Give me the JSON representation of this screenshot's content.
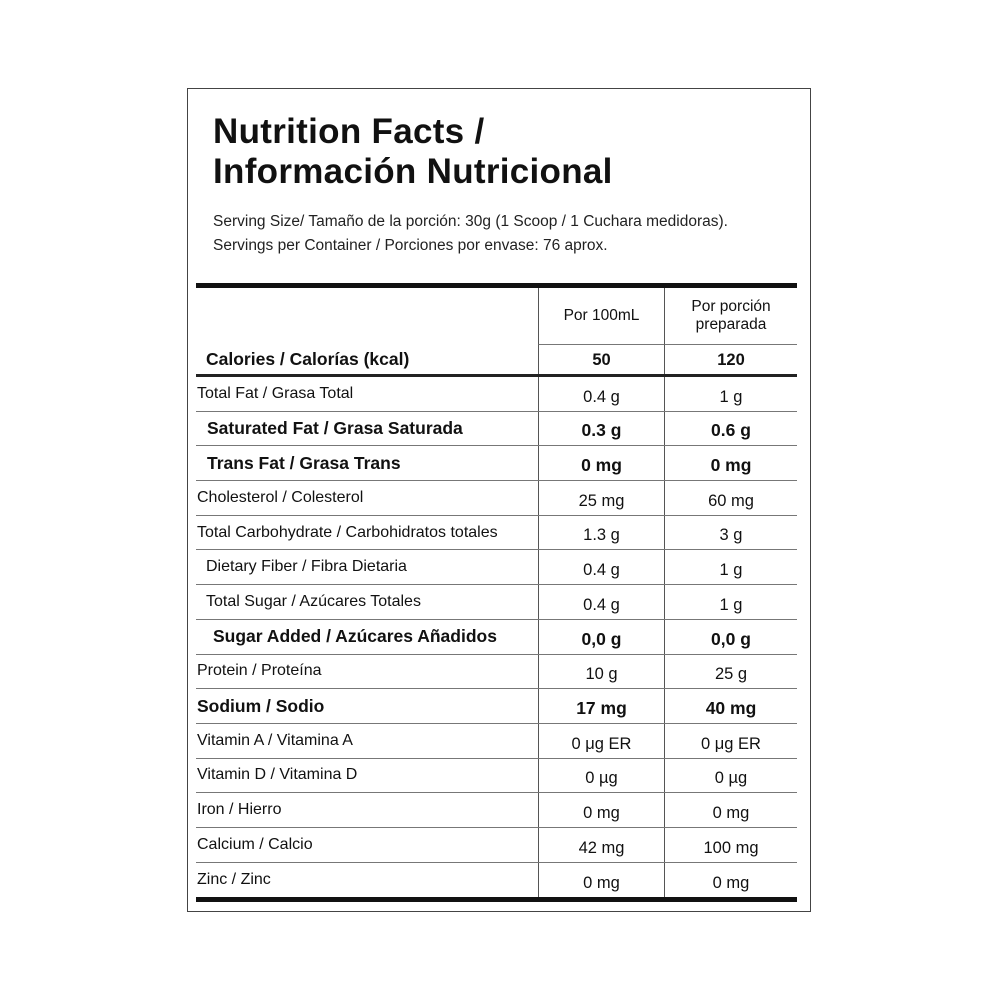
{
  "title_line1": "Nutrition Facts /",
  "title_line2": "Información Nutricional",
  "serving_size": "Serving Size/ Tamaño de la porción: 30g  (1 Scoop / 1 Cuchara medidoras).",
  "servings_per_container": "Servings per Container / Porciones por envase: 76 aprox.",
  "columns": [
    "Por 100mL",
    "Por porción preparada"
  ],
  "calories": {
    "label": "Calories / Calorías (kcal)",
    "per100": "50",
    "perServing": "120"
  },
  "rows": [
    {
      "label": "Total Fat / Grasa Total",
      "per100": "0.4 g",
      "perServing": "1 g"
    },
    {
      "label": "Saturated Fat / Grasa Saturada",
      "per100": "0.3 g",
      "perServing": "0.6 g"
    },
    {
      "label": "Trans Fat / Grasa Trans",
      "per100": "0 mg",
      "perServing": "0 mg"
    },
    {
      "label": "Cholesterol / Colesterol",
      "per100": "25 mg",
      "perServing": "60 mg"
    },
    {
      "label": "Total Carbohydrate / Carbohidratos totales",
      "per100": "1.3 g",
      "perServing": "3 g"
    },
    {
      "label": "Dietary Fiber / Fibra Dietaria",
      "per100": "0.4 g",
      "perServing": "1 g"
    },
    {
      "label": "Total Sugar / Azúcares Totales",
      "per100": "0.4 g",
      "perServing": "1 g"
    },
    {
      "label": "Sugar Added / Azúcares Añadidos",
      "per100": "0,0 g",
      "perServing": "0,0 g"
    },
    {
      "label": "Protein / Proteína",
      "per100": "10 g",
      "perServing": "25 g"
    },
    {
      "label": "Sodium / Sodio",
      "per100": "17 mg",
      "perServing": "40 mg"
    },
    {
      "label": "Vitamin A / Vitamina A",
      "per100": "0 μg ER",
      "perServing": "0 μg ER"
    },
    {
      "label": "Vitamin D / Vitamina D",
      "per100": "0 µg",
      "perServing": "0 µg"
    },
    {
      "label": "Iron / Hierro",
      "per100": "0 mg",
      "perServing": "0 mg"
    },
    {
      "label": "Calcium / Calcio",
      "per100": "42 mg",
      "perServing": "100 mg"
    },
    {
      "label": "Zinc / Zinc",
      "per100": "0 mg",
      "perServing": "0 mg"
    }
  ]
}
